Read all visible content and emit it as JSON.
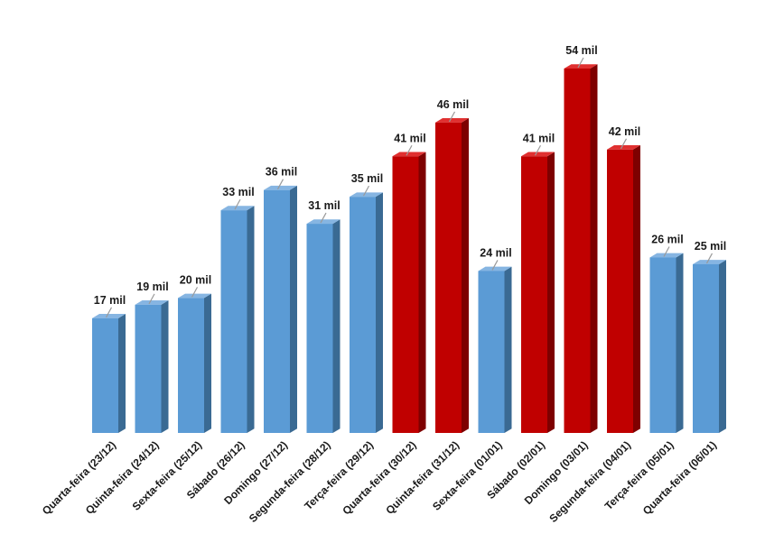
{
  "chart_data": {
    "type": "bar",
    "title": "",
    "xlabel": "",
    "ylabel": "",
    "ylim": [
      0,
      54
    ],
    "grid": false,
    "legend": "none",
    "categories": [
      "Quarta-feira (23/12)",
      "Quinta-feira (24/12)",
      "Sexta-feira (25/12)",
      "Sábado (26/12)",
      "Domingo (27/12)",
      "Segunda-feira (28/12)",
      "Terça-feira (29/12)",
      "Quarta-feira (30/12)",
      "Quinta-feira (31/12)",
      "Sexta-feira (01/01)",
      "Sábado (02/01)",
      "Domingo (03/01)",
      "Segunda-feira (04/01)",
      "Terça-feira (05/01)",
      "Quarta-feira (06/01)"
    ],
    "values": [
      17,
      19,
      20,
      33,
      36,
      31,
      35,
      41,
      46,
      24,
      41,
      54,
      42,
      26,
      25
    ],
    "value_labels": [
      "17 mil",
      "19 mil",
      "20 mil",
      "33 mil",
      "36 mil",
      "31 mil",
      "35 mil",
      "41 mil",
      "46 mil",
      "24 mil",
      "41 mil",
      "54 mil",
      "42 mil",
      "26 mil",
      "25 mil"
    ],
    "bar_colors": [
      "blue",
      "blue",
      "blue",
      "blue",
      "blue",
      "blue",
      "blue",
      "red",
      "red",
      "blue",
      "red",
      "red",
      "red",
      "blue",
      "blue"
    ],
    "palette": {
      "blue": {
        "front": "#5b9bd5",
        "side": "#3a6a93",
        "top": "#86b5e2"
      },
      "red": {
        "front": "#c00000",
        "side": "#7e0000",
        "top": "#e03030"
      }
    }
  }
}
